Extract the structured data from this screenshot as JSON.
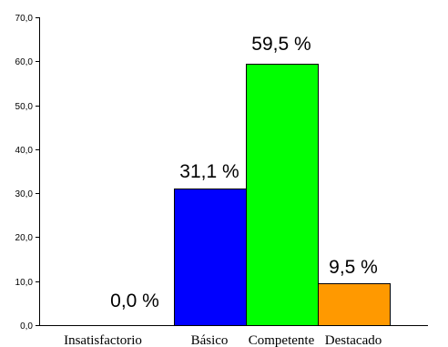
{
  "chart_data": {
    "type": "bar",
    "title": "",
    "xlabel": "",
    "ylabel": "",
    "ylim": [
      0,
      70
    ],
    "yticks": [
      "0,0",
      "10,0",
      "20,0",
      "30,0",
      "40,0",
      "50,0",
      "60,0",
      "70,0"
    ],
    "ytick_values": [
      0,
      10,
      20,
      30,
      40,
      50,
      60,
      70
    ],
    "categories": [
      "Insatisfactorio",
      "Básico",
      "Competente",
      "Destacado"
    ],
    "values": [
      0.0,
      31.1,
      59.5,
      9.5
    ],
    "data_labels": [
      "0,0 %",
      "31,1 %",
      "59,5 %",
      "9,5 %"
    ],
    "colors": [
      "#ffffff",
      "#0000ff",
      "#00ff00",
      "#ff9900"
    ],
    "grid": false,
    "legend": "none"
  }
}
